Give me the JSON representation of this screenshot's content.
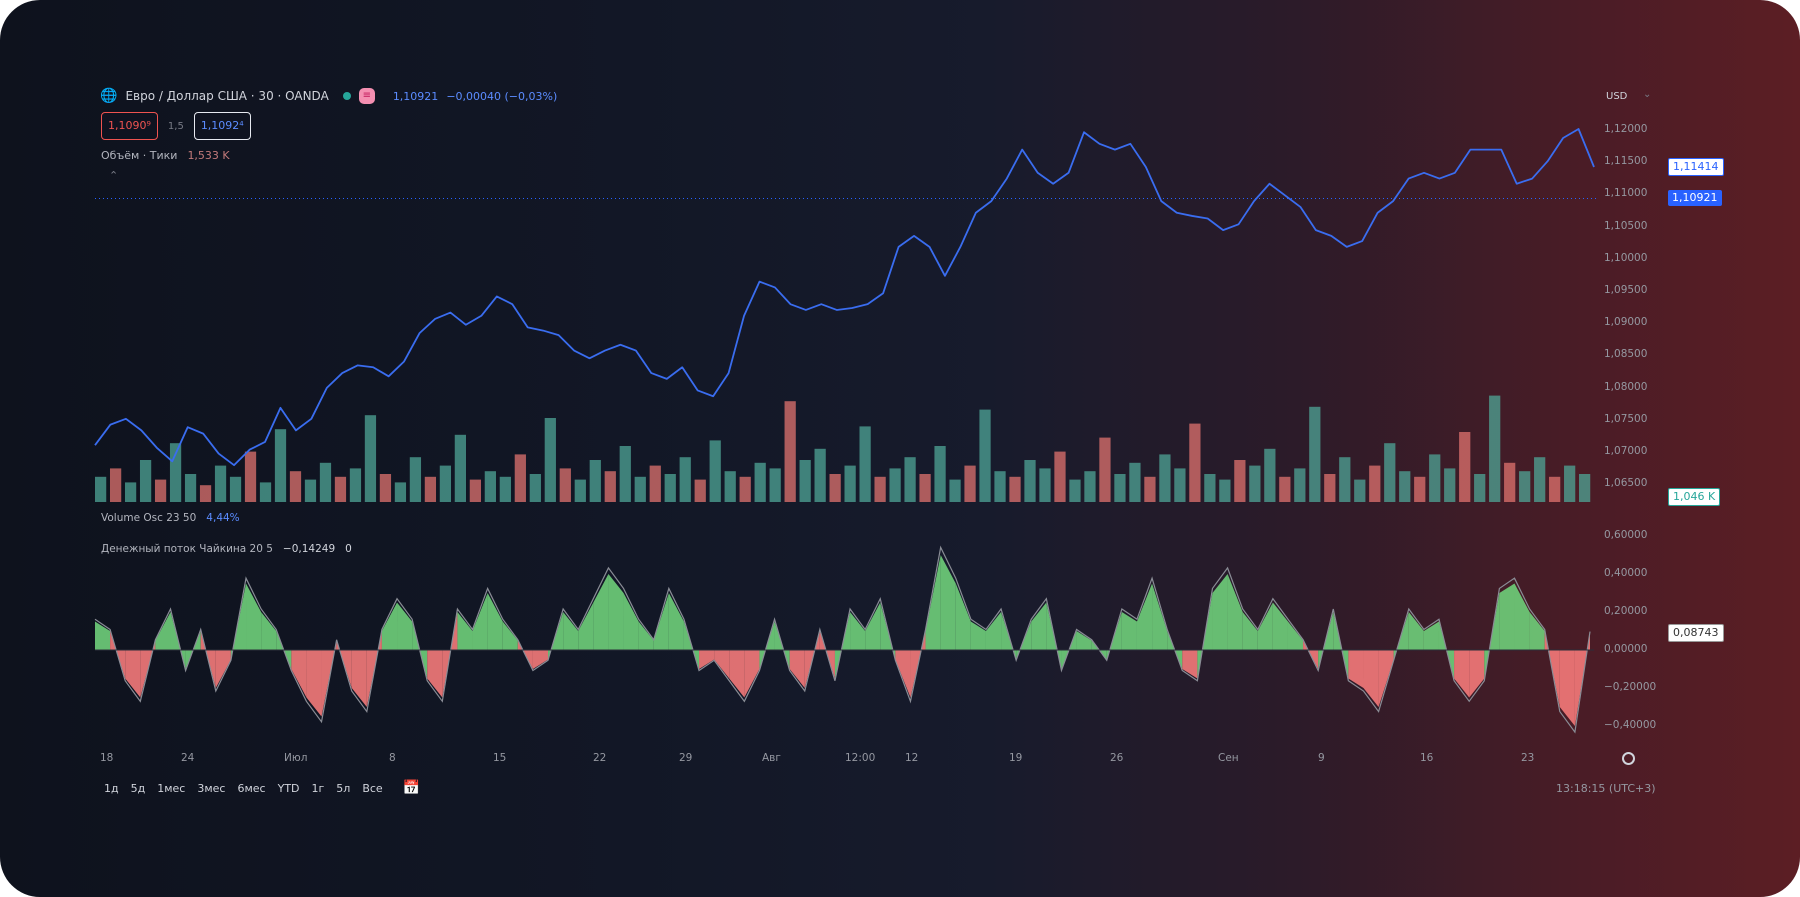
{
  "header": {
    "symbol_title": "Евро / Доллар США · 30 · OANDA",
    "market_status_color": "#26a69a",
    "last_price": "1,10921",
    "change": "−0,00040 (−0,03%)",
    "currency": "USD"
  },
  "quote": {
    "sell": "1,1090⁹",
    "spread": "1,5",
    "buy": "1,1092⁴"
  },
  "legends": {
    "volume": "Объём · Тики",
    "volume_value": "1,533 K",
    "volume_osc": "Volume Osc 23 50",
    "volume_osc_value": "4,44%",
    "cmf": "Денежный поток Чайкина 20 5",
    "cmf_value": "−0,14249",
    "cmf_extra": "0"
  },
  "price_axis": [
    "1,12000",
    "1,11500",
    "1,11000",
    "1,10500",
    "1,10000",
    "1,09500",
    "1,09000",
    "1,08500",
    "1,08000",
    "1,07500",
    "1,07000",
    "1,06500"
  ],
  "price_tags": {
    "last_bar": "1,11414",
    "current": "1,10921",
    "volume": "1,046 K",
    "cmf": "0,08743"
  },
  "osc_axis": [
    "0,60000",
    "0,40000",
    "0,20000",
    "0,00000",
    "−0,20000",
    "−0,40000"
  ],
  "time_axis": [
    "18",
    "24",
    "Июл",
    "8",
    "15",
    "22",
    "29",
    "Авг",
    "12:00",
    "12",
    "19",
    "26",
    "Сен",
    "9",
    "16",
    "23"
  ],
  "ranges": [
    "1д",
    "5д",
    "1мес",
    "3мес",
    "6мес",
    "YTD",
    "1г",
    "5л",
    "Все"
  ],
  "clock": "13:18:15 (UTC+3)",
  "colors": {
    "price_line": "#3a6df0",
    "current_price": "#2962ff",
    "vol_up": "#4fa597",
    "vol_down": "#e0736f",
    "cmf_pos": "#6fcf7a",
    "cmf_neg": "#f47a7a",
    "cmf_line": "#8a8d96"
  },
  "chart_data": [
    {
      "type": "line",
      "name": "EUR/USD price",
      "ylim": [
        1.065,
        1.12
      ],
      "values": [
        1.0709,
        1.0741,
        1.075,
        1.0732,
        1.0705,
        1.0684,
        1.0737,
        1.0727,
        1.0696,
        1.0678,
        1.0702,
        1.0714,
        1.0767,
        1.0732,
        1.075,
        1.0798,
        1.0821,
        1.0833,
        1.083,
        1.0816,
        1.0839,
        1.0883,
        1.0905,
        1.0915,
        1.0896,
        1.091,
        1.094,
        1.0928,
        1.0892,
        1.0887,
        1.088,
        1.0856,
        1.0844,
        1.0856,
        1.0865,
        1.0856,
        1.0821,
        1.0812,
        1.083,
        1.0794,
        1.0785,
        1.0821,
        1.091,
        1.0963,
        1.0954,
        1.0928,
        1.0919,
        1.0928,
        1.0919,
        1.0922,
        1.0928,
        1.0945,
        1.1017,
        1.1034,
        1.1017,
        1.0972,
        1.1017,
        1.107,
        1.1088,
        1.1123,
        1.1168,
        1.1132,
        1.1115,
        1.1132,
        1.1195,
        1.1177,
        1.1168,
        1.1177,
        1.1141,
        1.1088,
        1.107,
        1.1065,
        1.1061,
        1.1043,
        1.1052,
        1.1088,
        1.1115,
        1.1097,
        1.1079,
        1.1043,
        1.1034,
        1.1017,
        1.1026,
        1.107,
        1.1088,
        1.1123,
        1.1132,
        1.1123,
        1.1132,
        1.1168,
        1.1168,
        1.1168,
        1.1115,
        1.1123,
        1.115,
        1.1186,
        1.12,
        1.1141
      ],
      "current": 1.10921
    },
    {
      "type": "bar",
      "name": "Volume (ticks, K)",
      "values": [
        0.9,
        1.2,
        0.7,
        1.5,
        0.8,
        2.1,
        1.0,
        0.6,
        1.3,
        0.9,
        1.8,
        0.7,
        2.6,
        1.1,
        0.8,
        1.4,
        0.9,
        1.2,
        3.1,
        1.0,
        0.7,
        1.6,
        0.9,
        1.3,
        2.4,
        0.8,
        1.1,
        0.9,
        1.7,
        1.0,
        3.0,
        1.2,
        0.8,
        1.5,
        1.1,
        2.0,
        0.9,
        1.3,
        1.0,
        1.6,
        0.8,
        2.2,
        1.1,
        0.9,
        1.4,
        1.2,
        3.6,
        1.5,
        1.9,
        1.0,
        1.3,
        2.7,
        0.9,
        1.2,
        1.6,
        1.0,
        2.0,
        0.8,
        1.3,
        3.3,
        1.1,
        0.9,
        1.5,
        1.2,
        1.8,
        0.8,
        1.1,
        2.3,
        1.0,
        1.4,
        0.9,
        1.7,
        1.2,
        2.8,
        1.0,
        0.8,
        1.5,
        1.3,
        1.9,
        0.9,
        1.2,
        3.4,
        1.0,
        1.6,
        0.8,
        1.3,
        2.1,
        1.1,
        0.9,
        1.7,
        1.2,
        2.5,
        1.0,
        3.8,
        1.4,
        1.1,
        1.6,
        0.9,
        1.3,
        1.0
      ]
    },
    {
      "type": "area",
      "name": "Chaikin Money Flow",
      "ylim": [
        -0.45,
        0.65
      ],
      "values": [
        0.15,
        0.1,
        -0.15,
        -0.25,
        0.05,
        0.2,
        -0.1,
        0.1,
        -0.2,
        -0.05,
        0.35,
        0.2,
        0.1,
        -0.1,
        -0.25,
        -0.35,
        0.05,
        -0.2,
        -0.3,
        0.1,
        0.25,
        0.15,
        -0.15,
        -0.25,
        0.2,
        0.1,
        0.3,
        0.15,
        0.05,
        -0.1,
        -0.05,
        0.2,
        0.1,
        0.25,
        0.4,
        0.3,
        0.15,
        0.05,
        0.3,
        0.15,
        -0.1,
        -0.05,
        -0.15,
        -0.25,
        -0.1,
        0.15,
        -0.1,
        -0.2,
        0.1,
        -0.15,
        0.2,
        0.1,
        0.25,
        -0.05,
        -0.25,
        0.1,
        0.5,
        0.35,
        0.15,
        0.1,
        0.2,
        -0.05,
        0.15,
        0.25,
        -0.1,
        0.1,
        0.05,
        -0.05,
        0.2,
        0.15,
        0.35,
        0.1,
        -0.1,
        -0.15,
        0.3,
        0.4,
        0.2,
        0.1,
        0.25,
        0.15,
        0.05,
        -0.1,
        0.2,
        -0.15,
        -0.2,
        -0.3,
        -0.05,
        0.2,
        0.1,
        0.15,
        -0.15,
        -0.25,
        -0.15,
        0.3,
        0.35,
        0.2,
        0.1,
        -0.3,
        -0.4,
        0.09
      ]
    }
  ]
}
